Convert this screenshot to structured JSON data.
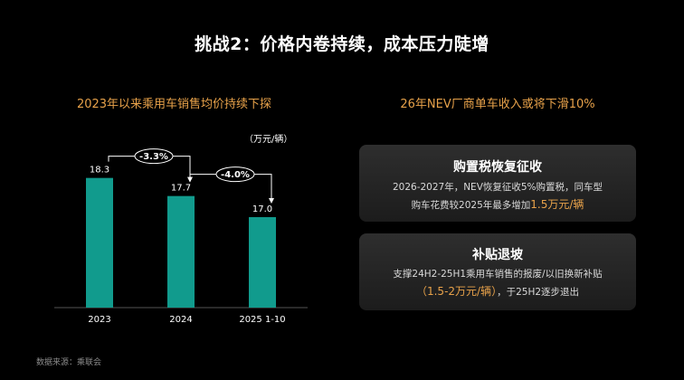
{
  "slide": {
    "title": "挑战2：价格内卷持续，成本压力陡增",
    "source": "数据来源：乘联会"
  },
  "left_panel": {
    "heading": "2023年以来乘用车销售均价持续下探",
    "unit": "（万元/辆）"
  },
  "right_panel": {
    "heading": "26年NEV厂商单车收入或将下滑10%",
    "cards": [
      {
        "title": "购置税恢复征收",
        "line1": "2026-2027年，NEV恢复征收5%购置税，同车型",
        "line2_pre": "购车花费较2025年最多增加",
        "line2_highlight": "1.5万元/辆"
      },
      {
        "title": "补贴退坡",
        "line1": "支撑24H2-25H1乘用车销售的报废/以旧换新补贴",
        "line2_highlight": "（1.5-2万元/辆）",
        "line2_post": "，于25H2逐步退出"
      }
    ]
  },
  "colors": {
    "bar": "#119b8d",
    "accent": "#e8a24a",
    "background": "#000000"
  },
  "chart_data": {
    "type": "bar",
    "title": "2023年以来乘用车销售均价持续下探",
    "ylabel": "（万元/辆）",
    "categories": [
      "2023",
      "2024",
      "2025 1-10"
    ],
    "values": [
      18.3,
      17.7,
      17.0
    ],
    "value_labels": [
      "18.3",
      "17.7",
      "17.0"
    ],
    "changes": [
      {
        "from": "2023",
        "to": "2024",
        "label": "-3.3%"
      },
      {
        "from": "2024",
        "to": "2025 1-10",
        "label": "-4.0%"
      }
    ],
    "ylim": [
      14,
      18.5
    ],
    "grid": false,
    "legend": "none"
  }
}
